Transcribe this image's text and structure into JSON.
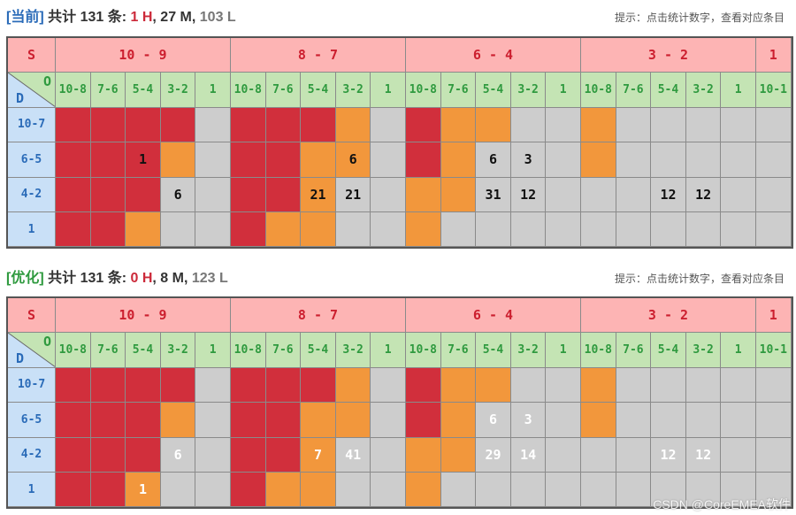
{
  "colors": {
    "H": "#d12f3c",
    "M": "#f2973c",
    "L": "#cdcdcd"
  },
  "s_label": "S",
  "o_label": "O",
  "d_label": "D",
  "s_groups": [
    "10 - 9",
    "8 - 7",
    "6 - 4",
    "3 - 2",
    "1"
  ],
  "o_cols": [
    "10-8",
    "7-6",
    "5-4",
    "3-2",
    "1",
    "10-8",
    "7-6",
    "5-4",
    "3-2",
    "1",
    "10-8",
    "7-6",
    "5-4",
    "3-2",
    "1",
    "10-8",
    "7-6",
    "5-4",
    "3-2",
    "1",
    "10-1"
  ],
  "d_rows": [
    "10-7",
    "6-5",
    "4-2",
    "1"
  ],
  "panels": [
    {
      "id": "current",
      "tag": "[当前]",
      "tag_color": "#2a6bb8",
      "summary_prefix": "共计 131 条: ",
      "h_text": "1 H",
      "sep1": ", ",
      "m_text": "27 M",
      "sep2": ", ",
      "l_text": "103 L",
      "hint": "提示：点击统计数字，查看对应条目",
      "number_style": "dark",
      "rows": [
        [
          "H",
          "H",
          "H",
          "H",
          "L",
          "H",
          "H",
          "H",
          "M",
          "L",
          "H",
          "M",
          "M",
          "L",
          "L",
          "M",
          "L",
          "L",
          "L",
          "L",
          "L"
        ],
        [
          "H",
          "H",
          "H",
          "M",
          "L",
          "H",
          "H",
          "M",
          "M",
          "L",
          "H",
          "M",
          "L",
          "L",
          "L",
          "M",
          "L",
          "L",
          "L",
          "L",
          "L"
        ],
        [
          "H",
          "H",
          "H",
          "L",
          "L",
          "H",
          "H",
          "M",
          "L",
          "L",
          "M",
          "M",
          "L",
          "L",
          "L",
          "L",
          "L",
          "L",
          "L",
          "L",
          "L"
        ],
        [
          "H",
          "H",
          "M",
          "L",
          "L",
          "H",
          "M",
          "M",
          "L",
          "L",
          "M",
          "L",
          "L",
          "L",
          "L",
          "L",
          "L",
          "L",
          "L",
          "L",
          "L"
        ]
      ],
      "numbers": [
        [
          "",
          "",
          "",
          "",
          "",
          "",
          "",
          "",
          "",
          "",
          "",
          "",
          "",
          "",
          "",
          "",
          "",
          "",
          "",
          "",
          ""
        ],
        [
          "",
          "",
          "1",
          "",
          "",
          "",
          "",
          "",
          "6",
          "",
          "",
          "",
          "6",
          "3",
          "",
          "",
          "",
          "",
          "",
          "",
          ""
        ],
        [
          "",
          "",
          "",
          "6",
          "",
          "",
          "",
          "21",
          "21",
          "",
          "",
          "",
          "31",
          "12",
          "",
          "",
          "",
          "12",
          "12",
          "",
          ""
        ],
        [
          "",
          "",
          "",
          "",
          "",
          "",
          "",
          "",
          "",
          "",
          "",
          "",
          "",
          "",
          "",
          "",
          "",
          "",
          "",
          "",
          ""
        ]
      ]
    },
    {
      "id": "optimized",
      "tag": "[优化]",
      "tag_color": "#2f9a3f",
      "summary_prefix": "共计 131 条: ",
      "h_text": "0 H",
      "sep1": ", ",
      "m_text": "8 M",
      "sep2": ", ",
      "l_text": "123 L",
      "hint": "提示：点击统计数字，查看对应条目",
      "number_style": "light",
      "rows": [
        [
          "H",
          "H",
          "H",
          "H",
          "L",
          "H",
          "H",
          "H",
          "M",
          "L",
          "H",
          "M",
          "M",
          "L",
          "L",
          "M",
          "L",
          "L",
          "L",
          "L",
          "L"
        ],
        [
          "H",
          "H",
          "H",
          "M",
          "L",
          "H",
          "H",
          "M",
          "M",
          "L",
          "H",
          "M",
          "L",
          "L",
          "L",
          "M",
          "L",
          "L",
          "L",
          "L",
          "L"
        ],
        [
          "H",
          "H",
          "H",
          "L",
          "L",
          "H",
          "H",
          "M",
          "L",
          "L",
          "M",
          "M",
          "L",
          "L",
          "L",
          "L",
          "L",
          "L",
          "L",
          "L",
          "L"
        ],
        [
          "H",
          "H",
          "M",
          "L",
          "L",
          "H",
          "M",
          "M",
          "L",
          "L",
          "M",
          "L",
          "L",
          "L",
          "L",
          "L",
          "L",
          "L",
          "L",
          "L",
          "L"
        ]
      ],
      "numbers": [
        [
          "",
          "",
          "",
          "",
          "",
          "",
          "",
          "",
          "",
          "",
          "",
          "",
          "",
          "",
          "",
          "",
          "",
          "",
          "",
          "",
          ""
        ],
        [
          "",
          "",
          "",
          "",
          "",
          "",
          "",
          "",
          "",
          "",
          "",
          "",
          "6",
          "3",
          "",
          "",
          "",
          "",
          "",
          "",
          ""
        ],
        [
          "",
          "",
          "",
          "6",
          "",
          "",
          "",
          "7",
          "41",
          "",
          "",
          "",
          "29",
          "14",
          "",
          "",
          "",
          "12",
          "12",
          "",
          ""
        ],
        [
          "",
          "",
          "1",
          "",
          "",
          "",
          "",
          "",
          "",
          "",
          "",
          "",
          "",
          "",
          "",
          "",
          "",
          "",
          "",
          "",
          ""
        ]
      ]
    }
  ],
  "watermark": "CSDN @CoreEMEA软件"
}
